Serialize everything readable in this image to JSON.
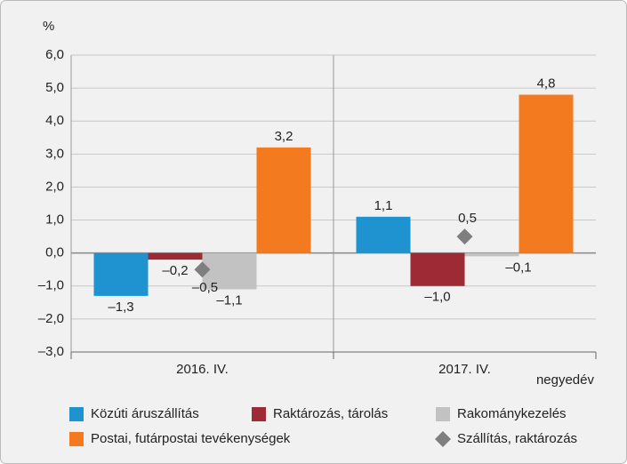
{
  "chart_data": {
    "type": "bar",
    "y_label": "%",
    "x_label": "negyedév",
    "categories": [
      "2016. IV.",
      "2017. IV."
    ],
    "series": [
      {
        "name": "Közúti áruszállítás",
        "color": "#1f93d0",
        "values": [
          -1.3,
          1.1
        ],
        "value_labels": [
          "–1,3",
          "1,1"
        ]
      },
      {
        "name": "Raktározás, tárolás",
        "color": "#9e2a35",
        "values": [
          -0.2,
          -1.0
        ],
        "value_labels": [
          "–0,2",
          "–1,0"
        ]
      },
      {
        "name": "Rakománykezelés",
        "color": "#c2c2c2",
        "values": [
          -1.1,
          -0.1
        ],
        "value_labels": [
          "–1,1",
          "–0,1"
        ]
      },
      {
        "name": "Postai, futárpostai tevékenységek",
        "color": "#f47a20",
        "values": [
          3.2,
          4.8
        ],
        "value_labels": [
          "3,2",
          "4,8"
        ]
      },
      {
        "name": "Szállítás, raktározás",
        "color": "#7f7f7f",
        "type": "scatter",
        "marker": "diamond",
        "values": [
          -0.5,
          0.5
        ],
        "value_labels": [
          "–0,5",
          "0,5"
        ]
      }
    ],
    "ylim": [
      -3,
      6
    ],
    "yticks": [
      {
        "value": -3,
        "label": "–3,0"
      },
      {
        "value": -2,
        "label": "–2,0"
      },
      {
        "value": -1,
        "label": "–1,0"
      },
      {
        "value": 0,
        "label": "0,0"
      },
      {
        "value": 1,
        "label": "1,0"
      },
      {
        "value": 2,
        "label": "2,0"
      },
      {
        "value": 3,
        "label": "3,0"
      },
      {
        "value": 4,
        "label": "4,0"
      },
      {
        "value": 5,
        "label": "5,0"
      },
      {
        "value": 6,
        "label": "6,0"
      }
    ],
    "grid": true,
    "legend": "bottom"
  }
}
